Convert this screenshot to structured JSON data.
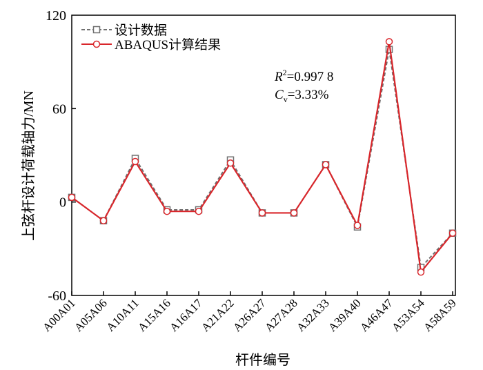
{
  "chart_data": {
    "type": "line",
    "xlabel": "杆件编号",
    "ylabel": "上弦杆设计荷载轴力/MN",
    "ylim": [
      -60,
      120
    ],
    "yticks": [
      -60,
      0,
      60,
      120
    ],
    "categories": [
      "A00A01",
      "A05A06",
      "A10A11",
      "A15A16",
      "A16A17",
      "A21A22",
      "A26A27",
      "A27A28",
      "A32A33",
      "A39A40",
      "A46A47",
      "A53A54",
      "A58A59"
    ],
    "grid": false,
    "legend_position": "top-left",
    "series": [
      {
        "name": "设计数据",
        "style": "dashed-square",
        "color": "#707070",
        "values": [
          3,
          -12,
          28,
          -5,
          -5,
          27,
          -7,
          -7,
          24,
          -16,
          98,
          -42,
          -20
        ]
      },
      {
        "name": "ABAQUS计算结果",
        "style": "solid-circle",
        "color": "#d9262b",
        "values": [
          3,
          -12,
          26,
          -6,
          -6,
          25,
          -7,
          -7,
          24,
          -15,
          103,
          -45,
          -20
        ]
      }
    ],
    "annotations": {
      "r2_symbol": "R",
      "r2_sup": "2",
      "r2_value": "=0.997 8",
      "cv_symbol": "C",
      "cv_sub": "v",
      "cv_value": "=3.33%"
    }
  }
}
